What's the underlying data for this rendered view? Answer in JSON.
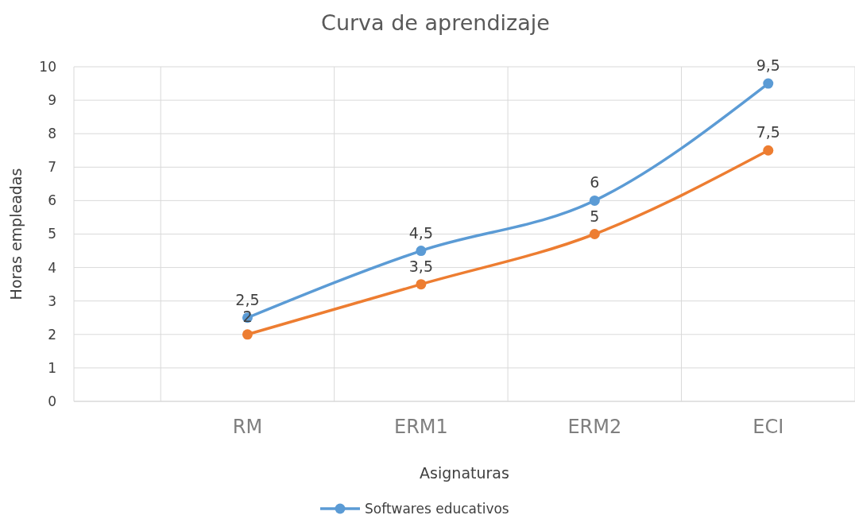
{
  "chart_data": {
    "type": "line",
    "title": "Curva de aprendizaje",
    "xlabel": "Asignaturas",
    "ylabel": "Horas empleadas",
    "categories": [
      "RM",
      "ERM1",
      "ERM2",
      "ECI"
    ],
    "series": [
      {
        "name": "Softwares educativos",
        "color": "#5b9bd5",
        "values": [
          2.5,
          4.5,
          6,
          9.5
        ],
        "value_labels": [
          "2,5",
          "4,5",
          "6",
          "9,5"
        ]
      },
      {
        "color": "#ed7d31",
        "values": [
          2,
          3.5,
          5,
          7.5
        ],
        "value_labels": [
          "2",
          "3,5",
          "5",
          "7,5"
        ]
      }
    ],
    "ylim": [
      0,
      10
    ],
    "yticks": [
      0,
      1,
      2,
      3,
      4,
      5,
      6,
      7,
      8,
      9,
      10
    ],
    "grid": true,
    "legend": "bottom",
    "marker": "circle",
    "line_style": "solid"
  }
}
